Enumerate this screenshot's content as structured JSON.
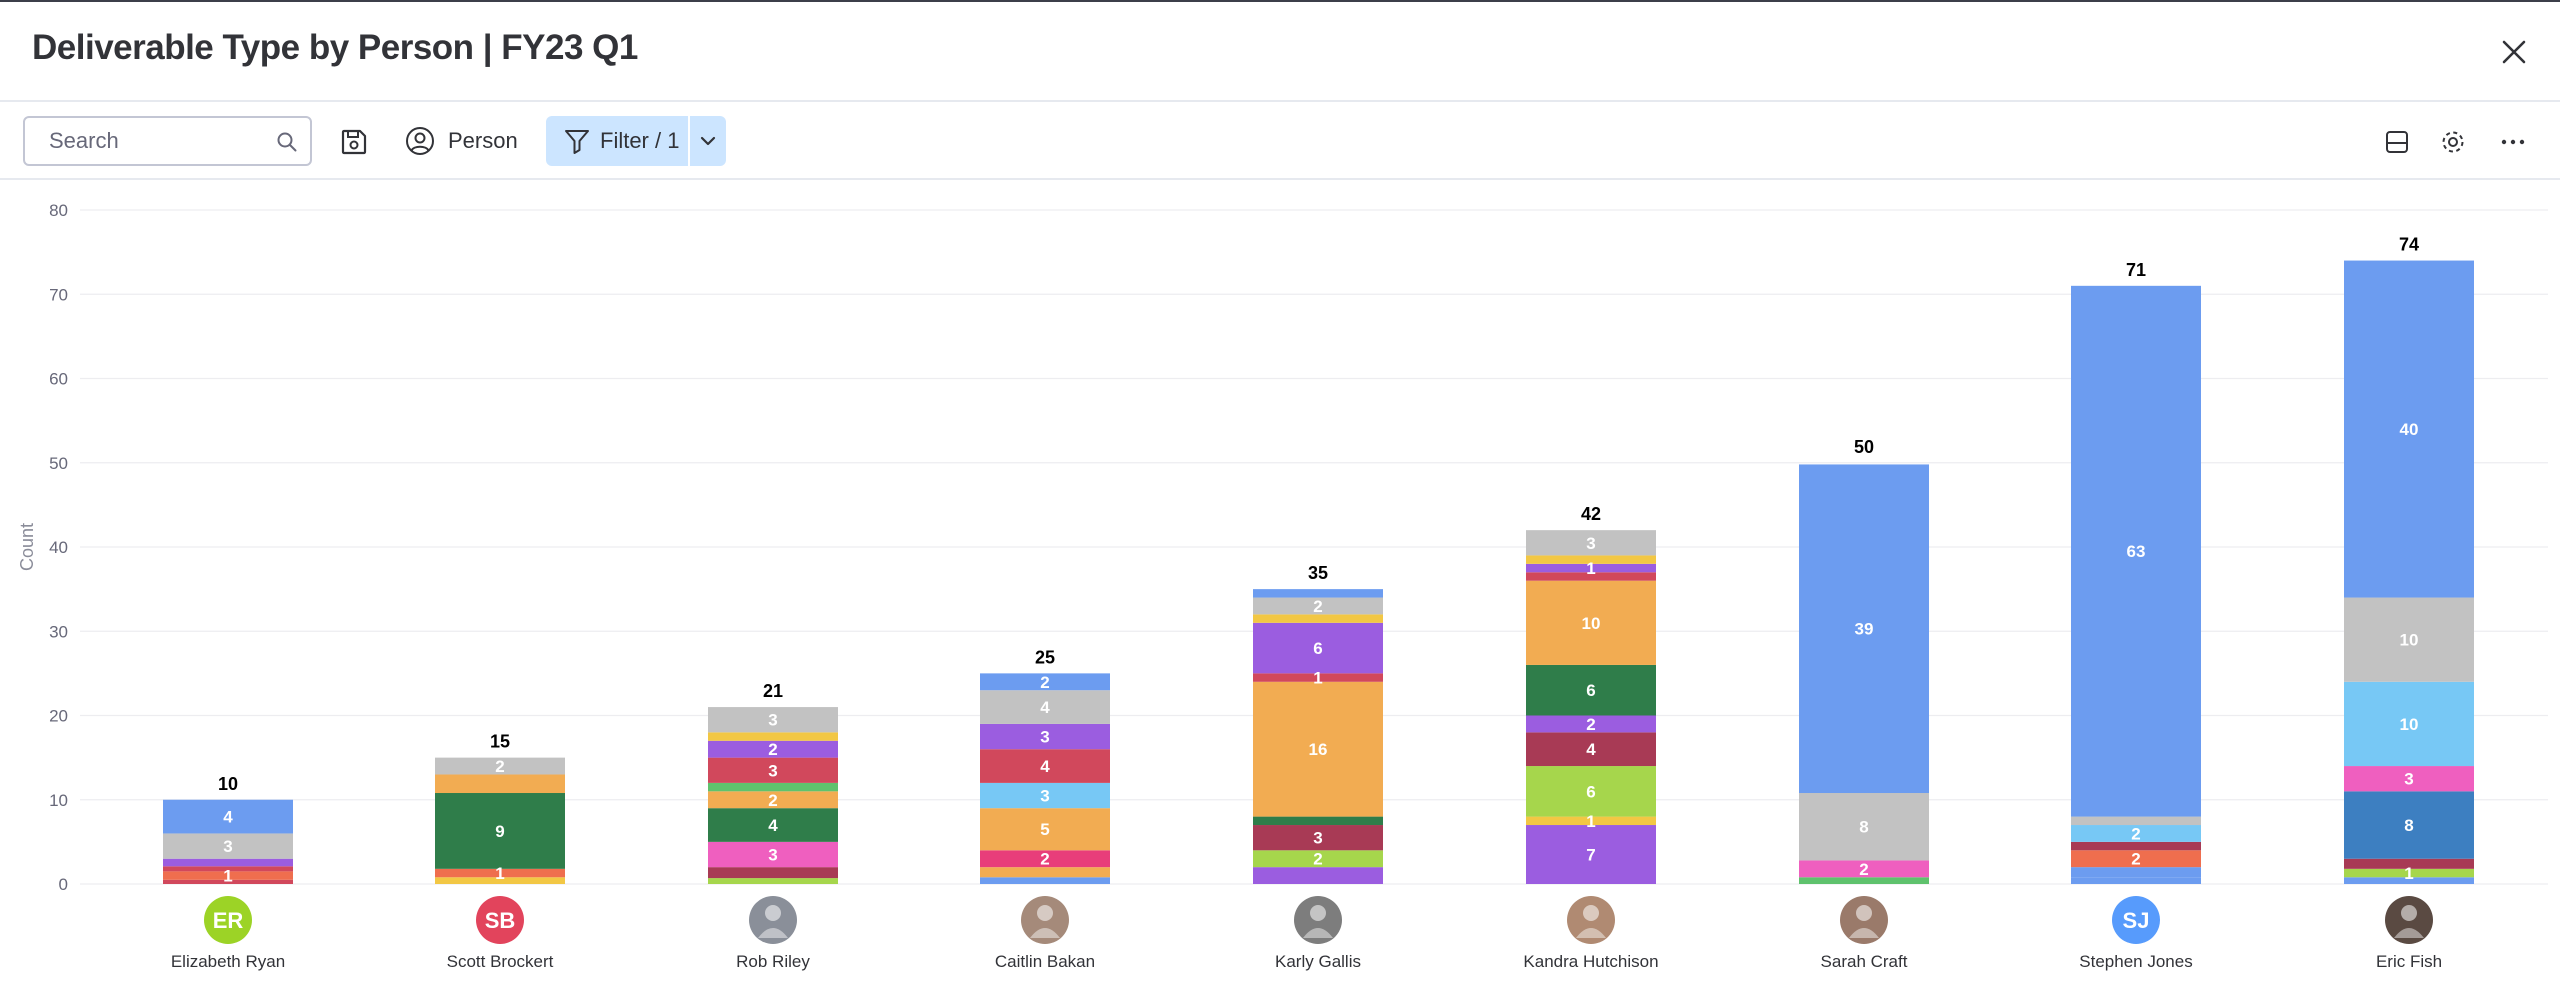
{
  "dialog": {
    "title": "Deliverable Type by Person | FY23 Q1",
    "close_icon": "close-icon"
  },
  "toolbar": {
    "search_placeholder": "Search",
    "search_value": "",
    "person_label": "Person",
    "filter_label": "Filter / 1",
    "icons": [
      "search-icon",
      "save-icon",
      "person-icon",
      "filter-icon",
      "chevron-down-icon",
      "layout-icon",
      "gear-icon",
      "more-icon"
    ]
  },
  "colors": {
    "blue": "#6c9cf0",
    "gray": "#c2c2c2",
    "purple": "#9b5de0",
    "red": "#d1485c",
    "orange": "#ef6e4e",
    "yellow": "#f2c744",
    "green_dark": "#2f7d4a",
    "orange_light": "#f2ac52",
    "maroon": "#a83a55",
    "pink": "#ef5fbf",
    "lime": "#a6d64c",
    "sky": "#77c8f5",
    "hot_pink": "#e83e7a",
    "steel": "#3d7fc1",
    "green": "#5fc26d"
  },
  "chart_data": {
    "type": "bar",
    "stacked": true,
    "ylabel": "Count",
    "ylim": [
      0,
      80
    ],
    "yticks": [
      "0",
      "10",
      "20",
      "30",
      "40",
      "50",
      "60",
      "70",
      "80"
    ],
    "grid": true,
    "categories": [
      "Elizabeth Ryan",
      "Scott Brockert",
      "Rob Riley",
      "Caitlin Bakan",
      "Karly Gallis",
      "Kandra Hutchison",
      "Sarah Craft",
      "Stephen Jones",
      "Eric Fish"
    ],
    "avatars": [
      {
        "initials": "ER",
        "color": "#9cd326"
      },
      {
        "initials": "SB",
        "color": "#e2445c"
      },
      {
        "initials": "",
        "color": "#8a8f99"
      },
      {
        "initials": "",
        "color": "#a58a7a"
      },
      {
        "initials": "",
        "color": "#7d7d7d"
      },
      {
        "initials": "",
        "color": "#b08a72"
      },
      {
        "initials": "",
        "color": "#9a7a6a"
      },
      {
        "initials": "SJ",
        "color": "#579bfc"
      },
      {
        "initials": "",
        "color": "#5a4a42"
      }
    ],
    "totals": [
      10,
      15,
      21,
      25,
      35,
      42,
      50,
      71,
      74
    ],
    "stacks": [
      [
        {
          "c": "red",
          "v": 0.5
        },
        {
          "c": "orange",
          "v": 1,
          "label": "1"
        },
        {
          "c": "red",
          "v": 0.6
        },
        {
          "c": "purple",
          "v": 0.9
        },
        {
          "c": "gray",
          "v": 3,
          "label": "3"
        },
        {
          "c": "blue",
          "v": 4,
          "label": "4"
        }
      ],
      [
        {
          "c": "yellow",
          "v": 0.8
        },
        {
          "c": "orange",
          "v": 1,
          "label": "1"
        },
        {
          "c": "green_dark",
          "v": 9,
          "label": "9"
        },
        {
          "c": "orange_light",
          "v": 2.2
        },
        {
          "c": "gray",
          "v": 2,
          "label": "2"
        }
      ],
      [
        {
          "c": "lime",
          "v": 0.7
        },
        {
          "c": "maroon",
          "v": 1.3
        },
        {
          "c": "pink",
          "v": 3,
          "label": "3"
        },
        {
          "c": "green_dark",
          "v": 4,
          "label": "4"
        },
        {
          "c": "orange_light",
          "v": 2,
          "label": "2"
        },
        {
          "c": "green",
          "v": 1
        },
        {
          "c": "red",
          "v": 3,
          "label": "3"
        },
        {
          "c": "purple",
          "v": 2,
          "label": "2"
        },
        {
          "c": "yellow",
          "v": 1
        },
        {
          "c": "gray",
          "v": 3,
          "label": "3"
        }
      ],
      [
        {
          "c": "blue",
          "v": 0.8
        },
        {
          "c": "orange_light",
          "v": 1.2
        },
        {
          "c": "hot_pink",
          "v": 2,
          "label": "2"
        },
        {
          "c": "orange_light",
          "v": 5,
          "label": "5"
        },
        {
          "c": "sky",
          "v": 3,
          "label": "3"
        },
        {
          "c": "red",
          "v": 4,
          "label": "4"
        },
        {
          "c": "purple",
          "v": 3,
          "label": "3"
        },
        {
          "c": "gray",
          "v": 4,
          "label": "4"
        },
        {
          "c": "blue",
          "v": 2,
          "label": "2"
        }
      ],
      [
        {
          "c": "purple",
          "v": 2
        },
        {
          "c": "lime",
          "v": 2,
          "label": "2"
        },
        {
          "c": "maroon",
          "v": 3,
          "label": "3"
        },
        {
          "c": "green_dark",
          "v": 1
        },
        {
          "c": "orange_light",
          "v": 16,
          "label": "16"
        },
        {
          "c": "red",
          "v": 1,
          "label": "1"
        },
        {
          "c": "purple",
          "v": 6,
          "label": "6"
        },
        {
          "c": "yellow",
          "v": 1
        },
        {
          "c": "gray",
          "v": 2,
          "label": "2"
        },
        {
          "c": "blue",
          "v": 1
        }
      ],
      [
        {
          "c": "purple",
          "v": 7,
          "label": "7"
        },
        {
          "c": "yellow",
          "v": 1,
          "label": "1"
        },
        {
          "c": "lime",
          "v": 6,
          "label": "6"
        },
        {
          "c": "maroon",
          "v": 4,
          "label": "4"
        },
        {
          "c": "purple",
          "v": 2,
          "label": "2"
        },
        {
          "c": "green_dark",
          "v": 6,
          "label": "6"
        },
        {
          "c": "orange_light",
          "v": 10,
          "label": "10"
        },
        {
          "c": "red",
          "v": 1
        },
        {
          "c": "purple",
          "v": 1,
          "label": "1"
        },
        {
          "c": "yellow",
          "v": 1
        },
        {
          "c": "gray",
          "v": 3,
          "label": "3"
        }
      ],
      [
        {
          "c": "green",
          "v": 0.8
        },
        {
          "c": "pink",
          "v": 2,
          "label": "2"
        },
        {
          "c": "gray",
          "v": 8,
          "label": "8"
        },
        {
          "c": "blue",
          "v": 39,
          "label": "39"
        }
      ],
      [
        {
          "c": "blue",
          "v": 0.8
        },
        {
          "c": "blue",
          "v": 1.2
        },
        {
          "c": "orange",
          "v": 2,
          "label": "2"
        },
        {
          "c": "maroon",
          "v": 1
        },
        {
          "c": "sky",
          "v": 2,
          "label": "2"
        },
        {
          "c": "gray",
          "v": 1
        },
        {
          "c": "blue",
          "v": 63,
          "label": "63"
        }
      ],
      [
        {
          "c": "blue",
          "v": 0.8
        },
        {
          "c": "lime",
          "v": 1,
          "label": "1"
        },
        {
          "c": "maroon",
          "v": 1.2
        },
        {
          "c": "steel",
          "v": 8,
          "label": "8"
        },
        {
          "c": "pink",
          "v": 3,
          "label": "3"
        },
        {
          "c": "sky",
          "v": 10,
          "label": "10"
        },
        {
          "c": "gray",
          "v": 10,
          "label": "10"
        },
        {
          "c": "blue",
          "v": 40,
          "label": "40"
        }
      ]
    ]
  }
}
